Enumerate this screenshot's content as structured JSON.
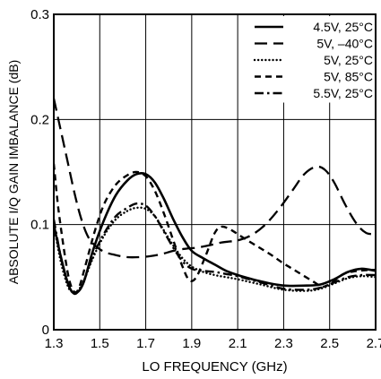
{
  "chart_data": {
    "type": "line",
    "title": "",
    "xlabel": "LO FREQUENCY (GHz)",
    "ylabel": "ABSOLUTE I/Q GAIN IMBALANCE (dB)",
    "xlim": [
      1.3,
      2.7
    ],
    "ylim": [
      0,
      0.3
    ],
    "x_ticks": [
      "1.3",
      "1.5",
      "1.7",
      "1.9",
      "2.1",
      "2.3",
      "2.5",
      "2.7"
    ],
    "y_ticks": [
      "0",
      "0.1",
      "0.2",
      "0.3"
    ],
    "grid": true,
    "legend_position": "top-right",
    "series": [
      {
        "name": "4.5V, 25°C",
        "style": "solid",
        "points": [
          [
            1.3,
            0.1
          ],
          [
            1.33,
            0.07
          ],
          [
            1.36,
            0.045
          ],
          [
            1.38,
            0.036
          ],
          [
            1.4,
            0.035
          ],
          [
            1.43,
            0.045
          ],
          [
            1.47,
            0.075
          ],
          [
            1.52,
            0.105
          ],
          [
            1.57,
            0.128
          ],
          [
            1.62,
            0.142
          ],
          [
            1.66,
            0.148
          ],
          [
            1.7,
            0.148
          ],
          [
            1.74,
            0.14
          ],
          [
            1.78,
            0.124
          ],
          [
            1.82,
            0.105
          ],
          [
            1.86,
            0.088
          ],
          [
            1.9,
            0.075
          ],
          [
            1.95,
            0.068
          ],
          [
            2.0,
            0.062
          ],
          [
            2.05,
            0.056
          ],
          [
            2.1,
            0.052
          ],
          [
            2.2,
            0.046
          ],
          [
            2.3,
            0.042
          ],
          [
            2.4,
            0.042
          ],
          [
            2.46,
            0.043
          ],
          [
            2.52,
            0.048
          ],
          [
            2.58,
            0.055
          ],
          [
            2.64,
            0.058
          ],
          [
            2.7,
            0.056
          ]
        ]
      },
      {
        "name": "5V, –40°C",
        "style": "long-dash",
        "points": [
          [
            1.3,
            0.22
          ],
          [
            1.33,
            0.19
          ],
          [
            1.36,
            0.16
          ],
          [
            1.39,
            0.13
          ],
          [
            1.42,
            0.105
          ],
          [
            1.45,
            0.088
          ],
          [
            1.48,
            0.08
          ],
          [
            1.52,
            0.074
          ],
          [
            1.57,
            0.071
          ],
          [
            1.62,
            0.069
          ],
          [
            1.67,
            0.069
          ],
          [
            1.72,
            0.07
          ],
          [
            1.77,
            0.072
          ],
          [
            1.82,
            0.075
          ],
          [
            1.87,
            0.077
          ],
          [
            1.92,
            0.078
          ],
          [
            1.97,
            0.08
          ],
          [
            2.03,
            0.083
          ],
          [
            2.1,
            0.085
          ],
          [
            2.16,
            0.09
          ],
          [
            2.22,
            0.1
          ],
          [
            2.28,
            0.115
          ],
          [
            2.34,
            0.133
          ],
          [
            2.39,
            0.148
          ],
          [
            2.44,
            0.155
          ],
          [
            2.48,
            0.152
          ],
          [
            2.52,
            0.14
          ],
          [
            2.57,
            0.118
          ],
          [
            2.62,
            0.1
          ],
          [
            2.66,
            0.092
          ],
          [
            2.7,
            0.091
          ]
        ]
      },
      {
        "name": "5V, 25°C",
        "style": "dotted",
        "points": [
          [
            1.3,
            0.1
          ],
          [
            1.33,
            0.065
          ],
          [
            1.36,
            0.042
          ],
          [
            1.38,
            0.036
          ],
          [
            1.4,
            0.036
          ],
          [
            1.43,
            0.046
          ],
          [
            1.47,
            0.068
          ],
          [
            1.52,
            0.09
          ],
          [
            1.57,
            0.105
          ],
          [
            1.62,
            0.113
          ],
          [
            1.66,
            0.116
          ],
          [
            1.7,
            0.115
          ],
          [
            1.74,
            0.108
          ],
          [
            1.78,
            0.094
          ],
          [
            1.82,
            0.08
          ],
          [
            1.86,
            0.068
          ],
          [
            1.9,
            0.06
          ],
          [
            1.95,
            0.055
          ],
          [
            2.0,
            0.052
          ],
          [
            2.05,
            0.05
          ],
          [
            2.1,
            0.048
          ],
          [
            2.2,
            0.043
          ],
          [
            2.3,
            0.038
          ],
          [
            2.4,
            0.037
          ],
          [
            2.46,
            0.039
          ],
          [
            2.52,
            0.044
          ],
          [
            2.58,
            0.049
          ],
          [
            2.64,
            0.051
          ],
          [
            2.7,
            0.05
          ]
        ]
      },
      {
        "name": "5V, 85°C",
        "style": "short-dash",
        "points": [
          [
            1.3,
            0.158
          ],
          [
            1.32,
            0.115
          ],
          [
            1.35,
            0.068
          ],
          [
            1.37,
            0.045
          ],
          [
            1.39,
            0.036
          ],
          [
            1.41,
            0.04
          ],
          [
            1.44,
            0.063
          ],
          [
            1.48,
            0.095
          ],
          [
            1.52,
            0.12
          ],
          [
            1.57,
            0.138
          ],
          [
            1.62,
            0.147
          ],
          [
            1.66,
            0.15
          ],
          [
            1.7,
            0.146
          ],
          [
            1.74,
            0.132
          ],
          [
            1.78,
            0.11
          ],
          [
            1.82,
            0.085
          ],
          [
            1.86,
            0.06
          ],
          [
            1.89,
            0.047
          ],
          [
            1.92,
            0.05
          ],
          [
            1.96,
            0.07
          ],
          [
            2.0,
            0.092
          ],
          [
            2.03,
            0.098
          ],
          [
            2.07,
            0.095
          ],
          [
            2.12,
            0.088
          ],
          [
            2.18,
            0.08
          ],
          [
            2.24,
            0.072
          ],
          [
            2.3,
            0.063
          ],
          [
            2.36,
            0.055
          ],
          [
            2.42,
            0.047
          ],
          [
            2.47,
            0.041
          ],
          [
            2.51,
            0.045
          ],
          [
            2.56,
            0.053
          ],
          [
            2.62,
            0.056
          ],
          [
            2.7,
            0.057
          ]
        ]
      },
      {
        "name": "5.5V, 25°C",
        "style": "dash-dot",
        "points": [
          [
            1.3,
            0.105
          ],
          [
            1.33,
            0.07
          ],
          [
            1.36,
            0.045
          ],
          [
            1.38,
            0.036
          ],
          [
            1.4,
            0.035
          ],
          [
            1.43,
            0.046
          ],
          [
            1.47,
            0.07
          ],
          [
            1.52,
            0.092
          ],
          [
            1.57,
            0.108
          ],
          [
            1.62,
            0.116
          ],
          [
            1.66,
            0.12
          ],
          [
            1.7,
            0.118
          ],
          [
            1.74,
            0.108
          ],
          [
            1.78,
            0.093
          ],
          [
            1.82,
            0.078
          ],
          [
            1.86,
            0.065
          ],
          [
            1.9,
            0.058
          ],
          [
            1.95,
            0.056
          ],
          [
            2.0,
            0.055
          ],
          [
            2.05,
            0.053
          ],
          [
            2.1,
            0.051
          ],
          [
            2.2,
            0.045
          ],
          [
            2.3,
            0.039
          ],
          [
            2.4,
            0.038
          ],
          [
            2.46,
            0.04
          ],
          [
            2.52,
            0.045
          ],
          [
            2.58,
            0.05
          ],
          [
            2.64,
            0.052
          ],
          [
            2.7,
            0.052
          ]
        ]
      }
    ]
  }
}
